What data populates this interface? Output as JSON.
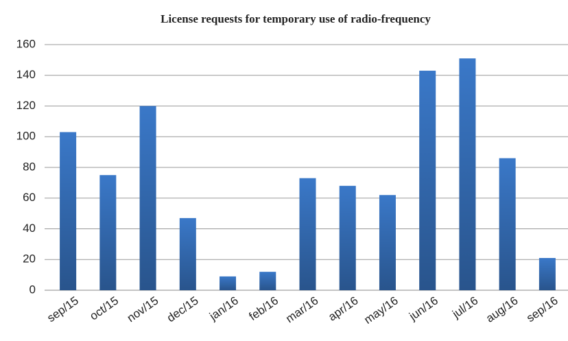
{
  "chart_data": {
    "type": "bar",
    "title": "License requests for temporary use of radio-frequency",
    "categories": [
      "sep/15",
      "oct/15",
      "nov/15",
      "dec/15",
      "jan/16",
      "feb/16",
      "mar/16",
      "apr/16",
      "may/16",
      "jun/16",
      "jul/16",
      "aug/16",
      "sep/16"
    ],
    "values": [
      103,
      75,
      120,
      47,
      9,
      12,
      73,
      68,
      62,
      143,
      151,
      86,
      21
    ],
    "color": "#3a78c8",
    "ylim": [
      0,
      160
    ],
    "yticks": [
      0,
      20,
      40,
      60,
      80,
      100,
      120,
      140,
      160
    ],
    "grid": true
  }
}
